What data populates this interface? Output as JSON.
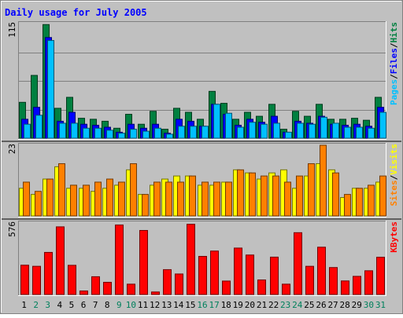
{
  "chart_data": [
    {
      "type": "bar",
      "title": "Daily usage for July 2005",
      "categories": [
        "1",
        "2",
        "3",
        "4",
        "5",
        "6",
        "7",
        "8",
        "9",
        "10",
        "11",
        "12",
        "13",
        "14",
        "15",
        "16",
        "17",
        "18",
        "19",
        "20",
        "21",
        "22",
        "23",
        "24",
        "25",
        "26",
        "27",
        "28",
        "29",
        "30",
        "31"
      ],
      "ymax_label": "115",
      "ylabel_parts": [
        "Pages",
        "/",
        "Files",
        "/",
        "Hits"
      ],
      "ylim": [
        0,
        115
      ],
      "series": [
        {
          "name": "Hits",
          "values": [
            36,
            63,
            114,
            30,
            41,
            20,
            19,
            17,
            10,
            24,
            14,
            27,
            9,
            30,
            26,
            19,
            47,
            35,
            19,
            26,
            22,
            34,
            9,
            27,
            22,
            34,
            19,
            19,
            20,
            18,
            41
          ]
        },
        {
          "name": "Files",
          "values": [
            19,
            31,
            101,
            17,
            26,
            14,
            13,
            11,
            6,
            14,
            10,
            14,
            5,
            19,
            17,
            12,
            34,
            24,
            13,
            19,
            16,
            22,
            6,
            17,
            15,
            22,
            14,
            13,
            14,
            12,
            31
          ]
        },
        {
          "name": "Pages",
          "values": [
            14,
            23,
            98,
            15,
            15,
            10,
            10,
            8,
            5,
            9,
            7,
            10,
            4,
            12,
            12,
            12,
            34,
            25,
            11,
            16,
            14,
            15,
            6,
            15,
            14,
            21,
            15,
            11,
            11,
            10,
            26
          ]
        }
      ],
      "colors": {
        "Hits": "#008040",
        "Files": "#0000ff",
        "Pages": "#00c0ff"
      }
    },
    {
      "type": "bar",
      "categories": [
        "1",
        "2",
        "3",
        "4",
        "5",
        "6",
        "7",
        "8",
        "9",
        "10",
        "11",
        "12",
        "13",
        "14",
        "15",
        "16",
        "17",
        "18",
        "19",
        "20",
        "21",
        "22",
        "23",
        "24",
        "25",
        "26",
        "27",
        "28",
        "29",
        "30",
        "31"
      ],
      "ymax_label": "23",
      "ylabel_parts": [
        "Sites",
        "/",
        "Visits"
      ],
      "ylim": [
        0,
        23
      ],
      "series": [
        {
          "name": "Visits",
          "values": [
            9,
            7,
            12,
            16,
            9,
            9,
            8,
            9,
            10,
            15,
            7,
            10,
            12,
            13,
            13,
            10,
            10,
            11,
            15,
            14,
            12,
            14,
            15,
            9,
            13,
            17,
            15,
            6,
            9,
            9,
            11
          ]
        },
        {
          "name": "Sites",
          "values": [
            11,
            8,
            12,
            17,
            10,
            10,
            11,
            12,
            11,
            17,
            7,
            11,
            11,
            11,
            13,
            11,
            11,
            11,
            15,
            14,
            13,
            13,
            11,
            13,
            17,
            23,
            14,
            7,
            9,
            10,
            13
          ]
        }
      ],
      "colors": {
        "Visits": "#ffff00",
        "Sites": "#ff8000"
      }
    },
    {
      "type": "bar",
      "categories": [
        "1",
        "2",
        "3",
        "4",
        "5",
        "6",
        "7",
        "8",
        "9",
        "10",
        "11",
        "12",
        "13",
        "14",
        "15",
        "16",
        "17",
        "18",
        "19",
        "20",
        "21",
        "22",
        "23",
        "24",
        "25",
        "26",
        "27",
        "28",
        "29",
        "30",
        "31"
      ],
      "ymax_label": "576",
      "ylabel_parts": [
        "KBytes"
      ],
      "ylim": [
        0,
        576
      ],
      "series": [
        {
          "name": "KBytes",
          "values": [
            236,
            227,
            339,
            545,
            235,
            28,
            143,
            98,
            560,
            83,
            516,
            20,
            200,
            165,
            566,
            307,
            350,
            108,
            374,
            318,
            117,
            301,
            83,
            498,
            227,
            381,
            217,
            109,
            146,
            191,
            300
          ]
        }
      ],
      "colors": {
        "KBytes": "#ff0000"
      }
    }
  ],
  "x_labels": {
    "weekday_color": "#000000",
    "weekend_color": "#00805c",
    "weekend_days": [
      "2",
      "3",
      "9",
      "10",
      "16",
      "17",
      "23",
      "24",
      "30",
      "31"
    ]
  },
  "axis_text_color": "#000000",
  "panel_bg": "#c0c0c0",
  "title_color": "#0000ff",
  "separator_color": "#000000"
}
